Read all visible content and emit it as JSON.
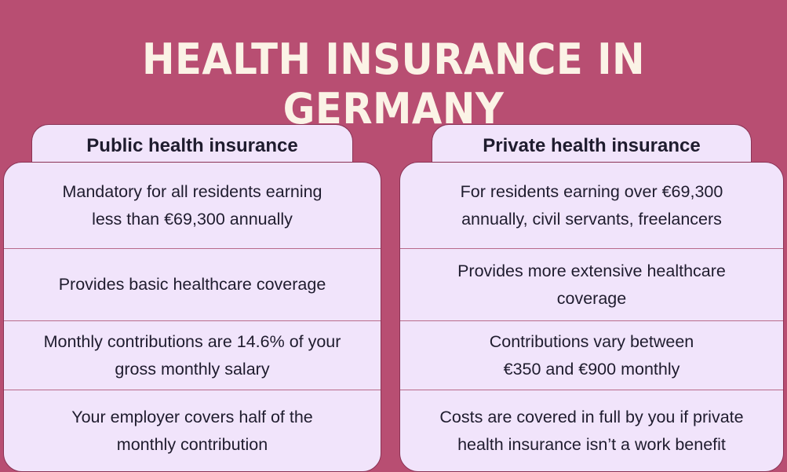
{
  "title": "HEALTH INSURANCE IN GERMANY",
  "public": {
    "heading": "Public health insurance",
    "rows": [
      {
        "l1": "Mandatory for all residents earning",
        "l2": "less than €69,300 annually"
      },
      {
        "l1": "Provides basic healthcare coverage",
        "l2": ""
      },
      {
        "l1": "Monthly contributions are 14.6% of your",
        "l2": "gross monthly salary"
      },
      {
        "l1": "Your employer covers half of the",
        "l2": "monthly contribution"
      }
    ]
  },
  "private": {
    "heading": "Private health insurance",
    "rows": [
      {
        "l1": "For residents earning over €69,300",
        "l2": "annually, civil servants, freelancers"
      },
      {
        "l1": "Provides more extensive healthcare",
        "l2": "coverage"
      },
      {
        "l1": "Contributions vary between",
        "l2": "€350 and €900 monthly"
      },
      {
        "l1": "Costs are covered in full by you if private",
        "l2": "health insurance isn’t a work benefit"
      }
    ]
  },
  "colors": {
    "background": "#b84e72",
    "card": "#f1e4fb",
    "title": "#fbf3e6",
    "border": "#8b3355",
    "text": "#1f1c2e"
  }
}
